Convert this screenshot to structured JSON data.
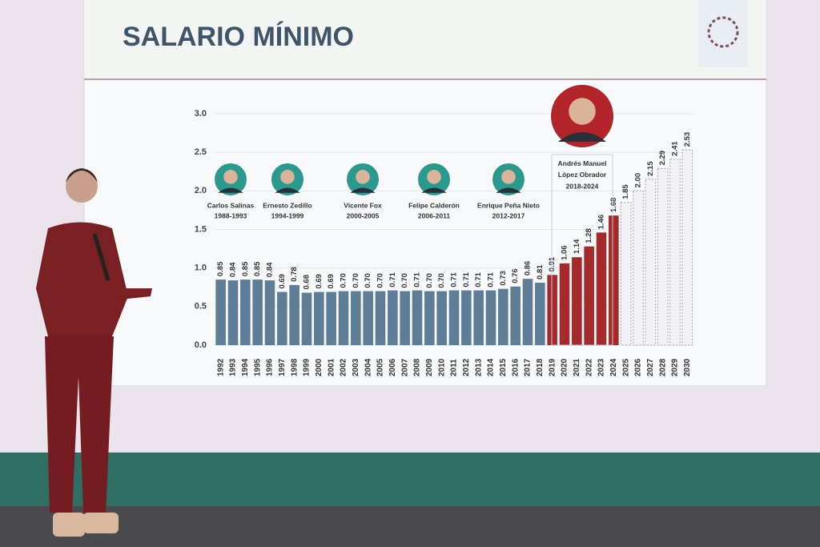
{
  "chart_data": {
    "type": "bar",
    "title": "SALARIO MÍNIMO",
    "categories": [
      "1992",
      "1993",
      "1994",
      "1995",
      "1996",
      "1997",
      "1998",
      "1999",
      "2000",
      "2001",
      "2002",
      "2003",
      "2004",
      "2005",
      "2006",
      "2007",
      "2008",
      "2009",
      "2010",
      "2011",
      "2012",
      "2013",
      "2014",
      "2015",
      "2016",
      "2017",
      "2018",
      "2019",
      "2020",
      "2021",
      "2022",
      "2023",
      "2024",
      "2025",
      "2026",
      "2027",
      "2028",
      "2029",
      "2030"
    ],
    "values": [
      0.85,
      0.84,
      0.85,
      0.85,
      0.84,
      0.69,
      0.78,
      0.68,
      0.69,
      0.69,
      0.7,
      0.7,
      0.7,
      0.7,
      0.71,
      0.7,
      0.71,
      0.7,
      0.7,
      0.71,
      0.71,
      0.71,
      0.71,
      0.73,
      0.76,
      0.86,
      0.81,
      0.91,
      1.06,
      1.14,
      1.28,
      1.46,
      1.68,
      1.85,
      2.0,
      2.15,
      2.29,
      2.41,
      2.53
    ],
    "value_labels": [
      "0.85",
      "0.84",
      "0.85",
      "0.85",
      "0.84",
      "0.69",
      "0.78",
      "0.68",
      "0.69",
      "0.69",
      "0.70",
      "0.70",
      "0.70",
      "0.70",
      "0.71",
      "0.70",
      "0.71",
      "0.70",
      "0.70",
      "0.71",
      "0.71",
      "0.71",
      "0.71",
      "0.73",
      "0.76",
      "0.86",
      "0.81",
      "0.91",
      "1.06",
      "1.14",
      "1.28",
      "1.46",
      "1.68",
      "1.85",
      "2.00",
      "2.15",
      "2.29",
      "2.41",
      "2.53"
    ],
    "colors": [
      "#5e7e97",
      "#5e7e97",
      "#5e7e97",
      "#5e7e97",
      "#5e7e97",
      "#5e7e97",
      "#5e7e97",
      "#5e7e97",
      "#5e7e97",
      "#5e7e97",
      "#5e7e97",
      "#5e7e97",
      "#5e7e97",
      "#5e7e97",
      "#5e7e97",
      "#5e7e97",
      "#5e7e97",
      "#5e7e97",
      "#5e7e97",
      "#5e7e97",
      "#5e7e97",
      "#5e7e97",
      "#5e7e97",
      "#5e7e97",
      "#5e7e97",
      "#5e7e97",
      "#5e7e97",
      "#a52a2c",
      "#a52a2c",
      "#a52a2c",
      "#a52a2c",
      "#a52a2c",
      "#a52a2c",
      "none",
      "none",
      "none",
      "none",
      "none",
      "none"
    ],
    "ylim": [
      0,
      3
    ],
    "yticks": [
      {
        "value": 0,
        "label": "0.0"
      },
      {
        "value": 0.5,
        "label": "0.5"
      },
      {
        "value": 1,
        "label": "1.0"
      },
      {
        "value": 1.5,
        "label": "1.5"
      },
      {
        "value": 2,
        "label": "2.0"
      },
      {
        "value": 2.5,
        "label": "2.5"
      },
      {
        "value": 3,
        "label": "3.0"
      }
    ],
    "grid": true,
    "annotations": [
      {
        "name": "Carlos Salinas",
        "years": "1988-1993"
      },
      {
        "name": "Ernesto Zedillo",
        "years": "1994-1999"
      },
      {
        "name": "Vicente Fox",
        "years": "2000-2005"
      },
      {
        "name": "Felipe Calderón",
        "years": "2006-2011"
      },
      {
        "name": "Enrique Peña Nieto",
        "years": "2012-2017"
      },
      {
        "name": "Andrés Manuel López Obrador",
        "years": "2018-2024"
      }
    ]
  }
}
